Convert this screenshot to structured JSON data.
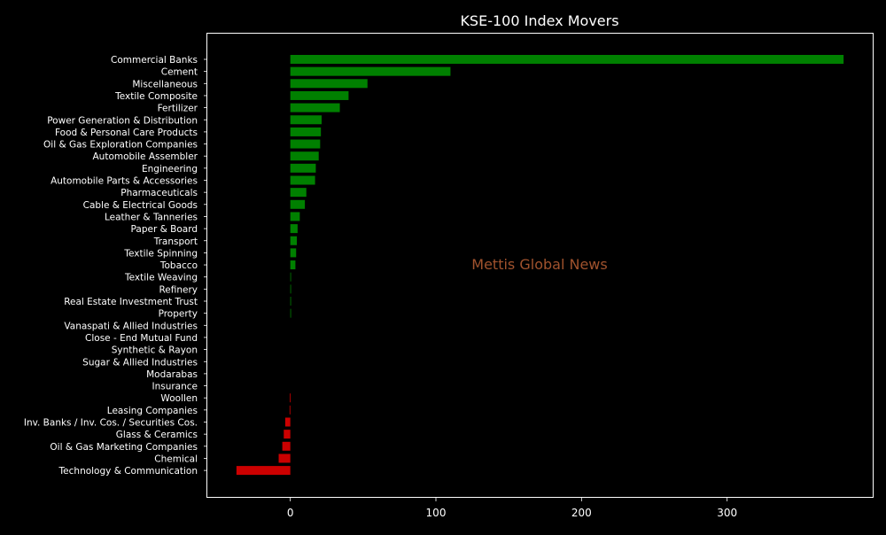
{
  "chart_data": {
    "type": "bar",
    "orientation": "horizontal",
    "title": "KSE-100 Index Movers",
    "xlabel": "",
    "ylabel": "",
    "xlim": [
      -57,
      400
    ],
    "x_ticks": [
      0,
      100,
      200,
      300
    ],
    "grid": false,
    "background": "#000000",
    "positive_color": "#008000",
    "negative_color": "#cc0000",
    "categories": [
      "Commercial Banks",
      "Cement",
      "Miscellaneous",
      "Textile Composite",
      "Fertilizer",
      "Power Generation & Distribution",
      "Food & Personal Care Products",
      "Oil & Gas Exploration Companies",
      "Automobile Assembler",
      "Engineering",
      "Automobile Parts & Accessories",
      "Pharmaceuticals",
      "Cable & Electrical Goods",
      "Leather & Tanneries",
      "Paper & Board",
      "Transport",
      "Textile Spinning",
      "Tobacco",
      "Textile Weaving",
      "Refinery",
      "Real Estate Investment Trust",
      "Property",
      "Vanaspati & Allied Industries",
      "Close - End Mutual Fund",
      "Synthetic & Rayon",
      "Sugar & Allied Industries",
      "Modarabas",
      "Insurance",
      "Woollen",
      "Leasing Companies",
      "Inv. Banks / Inv. Cos. / Securities Cos.",
      "Glass & Ceramics",
      "Oil & Gas Marketing Companies",
      "Chemical",
      "Technology & Communication"
    ],
    "values": [
      380,
      110,
      53,
      40,
      34,
      21.5,
      21,
      20.5,
      19.5,
      17.5,
      17,
      11,
      10,
      6.5,
      5,
      4.5,
      4,
      3.5,
      0.3,
      0.3,
      0.3,
      0.3,
      0,
      0,
      0,
      0,
      0,
      0,
      -0.3,
      -0.5,
      -3.5,
      -4.5,
      -5.5,
      -8,
      -37
    ],
    "annotations": [
      {
        "text": "Mettis Global News",
        "color": "#a0522d"
      }
    ]
  }
}
